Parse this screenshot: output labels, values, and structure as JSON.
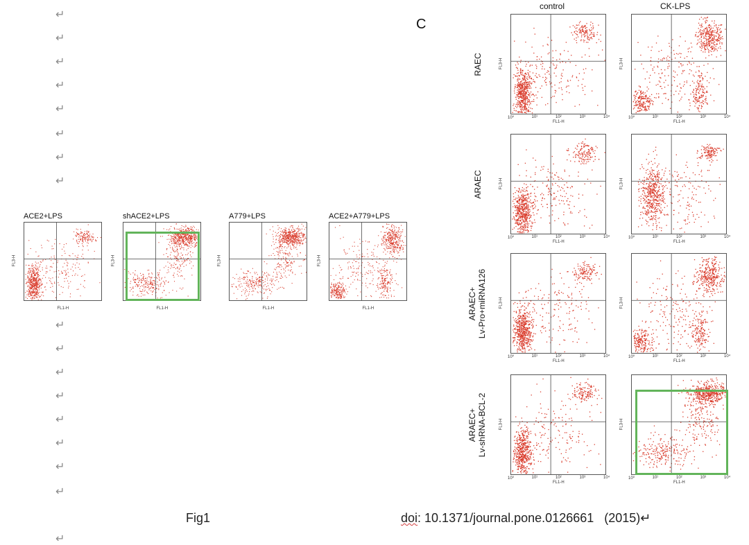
{
  "paragraph_mark": "↵",
  "left_figure": {
    "panels": [
      {
        "title": "ACE2+LPS",
        "pattern": "A",
        "highlighted": false
      },
      {
        "title": "shACE2+LPS",
        "pattern": "B",
        "highlighted": true
      },
      {
        "title": "A779+LPS",
        "pattern": "B",
        "highlighted": false
      },
      {
        "title": "ACE2+A779+LPS",
        "pattern": "C",
        "highlighted": false
      }
    ],
    "x_axis_label": "FL1-H",
    "y_axis_label": "FL3-H"
  },
  "right_figure": {
    "panel_letter": "C",
    "column_headers": [
      "control",
      "CK-LPS"
    ],
    "rows": [
      {
        "label_lines": [
          "RAEC"
        ],
        "patterns": [
          "A",
          "C"
        ],
        "highlight": [
          false,
          false
        ]
      },
      {
        "label_lines": [
          "ARAEC"
        ],
        "patterns": [
          "A",
          "D"
        ],
        "highlight": [
          false,
          false
        ]
      },
      {
        "label_lines": [
          "ARAEC+",
          "Lv-Pro+miRNA126"
        ],
        "patterns": [
          "A",
          "C"
        ],
        "highlight": [
          false,
          false
        ]
      },
      {
        "label_lines": [
          "ARAEC+",
          "Lv-shRNA-BCL-2"
        ],
        "patterns": [
          "A",
          "B"
        ],
        "highlight": [
          false,
          true
        ]
      }
    ],
    "x_axis_label": "FL1-H",
    "y_axis_label": "FL3-H",
    "tick_labels": [
      "10⁰",
      "10¹",
      "10²",
      "10³",
      "10⁴"
    ]
  },
  "caption": {
    "fig_label": "Fig1",
    "doi_prefix": "doi",
    "doi_rest": ": 10.1371/journal.pone.0126661   (2015)↵"
  },
  "colors": {
    "scatter": "#d93a2a",
    "highlight_box": "#62b45a",
    "gate_line": "#444444"
  }
}
